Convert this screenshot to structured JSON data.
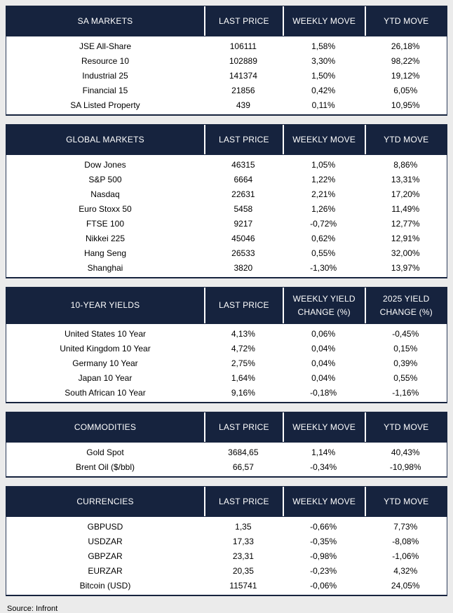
{
  "page": {
    "source_note": "Source: Infront",
    "background": "#ebebeb"
  },
  "theme": {
    "header_bg": "#16233e",
    "header_text": "#ffffff",
    "body_bg": "#ffffff",
    "body_text": "#000000",
    "border": "#16233e",
    "header_separator": "#ffffff"
  },
  "tables": [
    {
      "id": "sa-markets",
      "title": "SA MARKETS",
      "two_line_header": false,
      "columns": [
        [
          "LAST PRICE"
        ],
        [
          "WEEKLY MOVE"
        ],
        [
          "YTD MOVE"
        ]
      ],
      "rows": [
        {
          "label": "JSE All-Share",
          "values": [
            "106111",
            "1,58%",
            "26,18%"
          ]
        },
        {
          "label": "Resource 10",
          "values": [
            "102889",
            "3,30%",
            "98,22%"
          ]
        },
        {
          "label": "Industrial 25",
          "values": [
            "141374",
            "1,50%",
            "19,12%"
          ]
        },
        {
          "label": "Financial 15",
          "values": [
            "21856",
            "0,42%",
            "6,05%"
          ]
        },
        {
          "label": "SA Listed Property",
          "values": [
            "439",
            "0,11%",
            "10,95%"
          ]
        }
      ]
    },
    {
      "id": "global-markets",
      "title": "GLOBAL MARKETS",
      "two_line_header": false,
      "columns": [
        [
          "LAST PRICE"
        ],
        [
          "WEEKLY MOVE"
        ],
        [
          "YTD MOVE"
        ]
      ],
      "rows": [
        {
          "label": "Dow Jones",
          "values": [
            "46315",
            "1,05%",
            "8,86%"
          ]
        },
        {
          "label": "S&P 500",
          "values": [
            "6664",
            "1,22%",
            "13,31%"
          ]
        },
        {
          "label": "Nasdaq",
          "values": [
            "22631",
            "2,21%",
            "17,20%"
          ]
        },
        {
          "label": "Euro Stoxx 50",
          "values": [
            "5458",
            "1,26%",
            "11,49%"
          ]
        },
        {
          "label": "FTSE 100",
          "values": [
            "9217",
            "-0,72%",
            "12,77%"
          ]
        },
        {
          "label": "Nikkei 225",
          "values": [
            "45046",
            "0,62%",
            "12,91%"
          ]
        },
        {
          "label": "Hang Seng",
          "values": [
            "26533",
            "0,55%",
            "32,00%"
          ]
        },
        {
          "label": "Shanghai",
          "values": [
            "3820",
            "-1,30%",
            "13,97%"
          ]
        }
      ]
    },
    {
      "id": "ten-year-yields",
      "title": "10-YEAR YIELDS",
      "two_line_header": true,
      "columns": [
        [
          "LAST PRICE"
        ],
        [
          "WEEKLY YIELD",
          "CHANGE (%)"
        ],
        [
          "2025 YIELD",
          "CHANGE (%)"
        ]
      ],
      "rows": [
        {
          "label": "United States 10 Year",
          "values": [
            "4,13%",
            "0,06%",
            "-0,45%"
          ]
        },
        {
          "label": "United Kingdom 10 Year",
          "values": [
            "4,72%",
            "0,04%",
            "0,15%"
          ]
        },
        {
          "label": "Germany 10 Year",
          "values": [
            "2,75%",
            "0,04%",
            "0,39%"
          ]
        },
        {
          "label": "Japan 10 Year",
          "values": [
            "1,64%",
            "0,04%",
            "0,55%"
          ]
        },
        {
          "label": "South African 10 Year",
          "values": [
            "9,16%",
            "-0,18%",
            "-1,16%"
          ]
        }
      ]
    },
    {
      "id": "commodities",
      "title": "COMMODITIES",
      "two_line_header": false,
      "columns": [
        [
          "LAST PRICE"
        ],
        [
          "WEEKLY MOVE"
        ],
        [
          "YTD MOVE"
        ]
      ],
      "rows": [
        {
          "label": "Gold Spot",
          "values": [
            "3684,65",
            "1,14%",
            "40,43%"
          ]
        },
        {
          "label": "Brent Oil ($/bbl)",
          "values": [
            "66,57",
            "-0,34%",
            "-10,98%"
          ]
        }
      ]
    },
    {
      "id": "currencies",
      "title": "CURRENCIES",
      "two_line_header": false,
      "columns": [
        [
          "LAST PRICE"
        ],
        [
          "WEEKLY MOVE"
        ],
        [
          "YTD MOVE"
        ]
      ],
      "rows": [
        {
          "label": "GBPUSD",
          "values": [
            "1,35",
            "-0,66%",
            "7,73%"
          ]
        },
        {
          "label": "USDZAR",
          "values": [
            "17,33",
            "-0,35%",
            "-8,08%"
          ]
        },
        {
          "label": "GBPZAR",
          "values": [
            "23,31",
            "-0,98%",
            "-1,06%"
          ]
        },
        {
          "label": "EURZAR",
          "values": [
            "20,35",
            "-0,23%",
            "4,32%"
          ]
        },
        {
          "label": "Bitcoin (USD)",
          "values": [
            "115741",
            "-0,06%",
            "24,05%"
          ]
        }
      ]
    }
  ]
}
